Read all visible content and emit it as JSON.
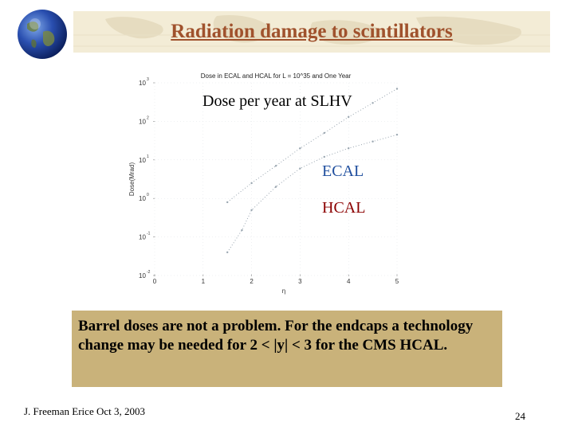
{
  "slide": {
    "title": "Radiation damage to scintillators",
    "footer": "J. Freeman   Erice  Oct 3, 2003",
    "page_number": "24"
  },
  "figure": {
    "overlay_dose": "Dose per year at SLHV",
    "overlay_ecal": "ECAL",
    "overlay_hcal": "HCAL"
  },
  "note": {
    "text": "Barrel doses are not a problem. For the endcaps a technology change may be needed for 2 < |y| < 3 for the CMS HCAL."
  },
  "chart_data": {
    "type": "scatter",
    "title": "Dose in ECAL and HCAL for L = 10^35 and One Year",
    "xlabel": "η",
    "ylabel": "Dose(Mrad)",
    "log_y": true,
    "xlim": [
      0,
      5
    ],
    "ylim": [
      0.01,
      1000
    ],
    "x_ticks": [
      "0",
      "1",
      "2",
      "3",
      "4",
      "5"
    ],
    "y_ticks": [
      {
        "base": "10",
        "exp": "3"
      },
      {
        "base": "10",
        "exp": "2"
      },
      {
        "base": "10",
        "exp": "1"
      },
      {
        "base": "10",
        "exp": "0"
      },
      {
        "base": "10",
        "exp": "-1"
      },
      {
        "base": "10",
        "exp": "-2"
      }
    ],
    "series": [
      {
        "values": [
          [
            1.5,
            0.8
          ],
          [
            2.0,
            2.5
          ],
          [
            2.5,
            7
          ],
          [
            3.0,
            20
          ],
          [
            3.5,
            50
          ],
          [
            4.0,
            130
          ],
          [
            4.5,
            300
          ],
          [
            5.0,
            700
          ]
        ],
        "color": "#9aa6b0"
      },
      {
        "values": [
          [
            1.5,
            0.04
          ],
          [
            1.8,
            0.15
          ],
          [
            2.0,
            0.5
          ],
          [
            2.5,
            2
          ],
          [
            3.0,
            6
          ],
          [
            3.5,
            12
          ],
          [
            4.0,
            20
          ],
          [
            4.5,
            30
          ],
          [
            5.0,
            45
          ]
        ],
        "color": "#9aa6b0"
      }
    ]
  }
}
